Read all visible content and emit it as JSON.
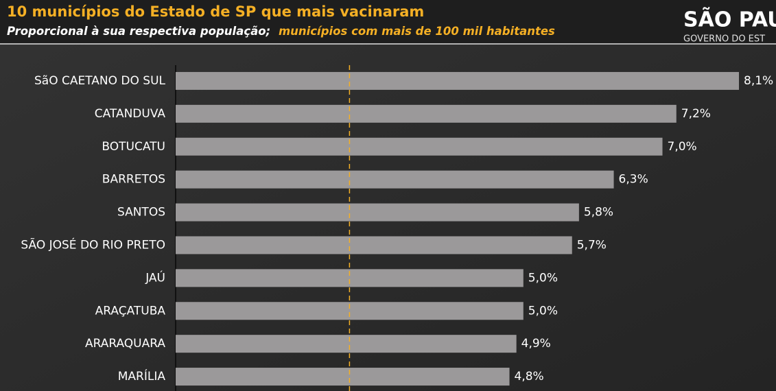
{
  "chart_data": {
    "type": "bar",
    "orientation": "horizontal",
    "title": "10 municípios do Estado de SP que mais vacinaram",
    "subtitle": [
      "Proporcional à sua respectiva população;",
      "municípios com mais de 100 mil habitantes"
    ],
    "categories": [
      "SãO CAETANO DO SUL",
      "CATANDUVA",
      "BOTUCATU",
      "BARRETOS",
      "SANTOS",
      "SÃO JOSÉ DO RIO PRETO",
      "JAÚ",
      "ARAÇATUBA",
      "ARARAQUARA",
      "MARÍLIA"
    ],
    "values": [
      8.1,
      7.2,
      7.0,
      6.3,
      5.8,
      5.7,
      5.0,
      5.0,
      4.9,
      4.8
    ],
    "value_labels": [
      "8,1%",
      "7,2%",
      "7,0%",
      "6,3%",
      "5,8%",
      "5,7%",
      "5,0%",
      "5,0%",
      "4,9%",
      "4,8%"
    ],
    "color": "#9b999a",
    "reference_line": 2.5,
    "reference_color": "#f5b025",
    "logo": [
      "SÃO PAU",
      "GOVERNO DO EST"
    ]
  }
}
